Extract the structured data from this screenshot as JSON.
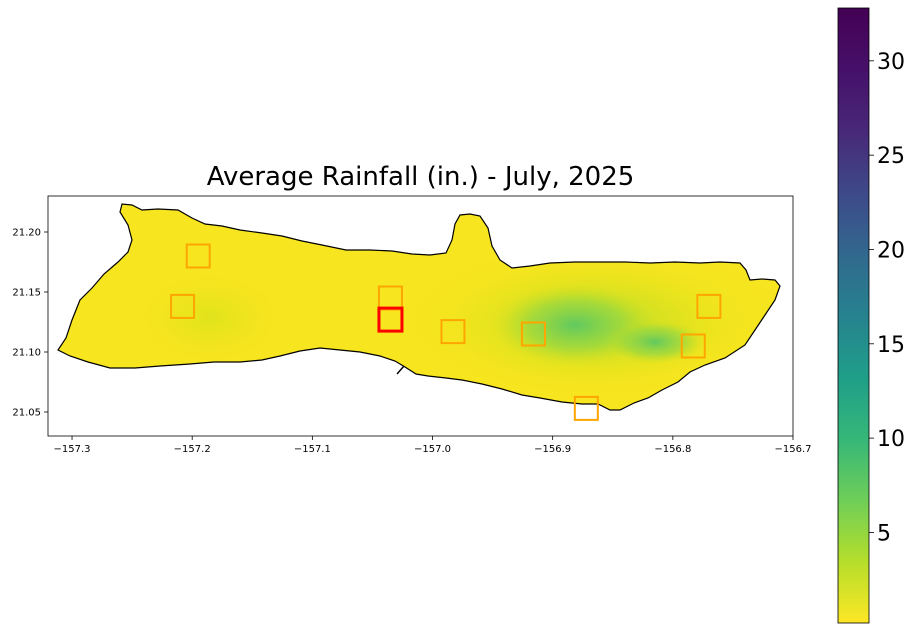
{
  "title": "Average Rainfall (in.) - July, 2025",
  "map": {
    "x_ticks": [
      "−157.3",
      "−157.2",
      "−157.1",
      "−157.0",
      "−156.9",
      "−156.8",
      "−156.7"
    ],
    "y_ticks": [
      "21.20",
      "21.15",
      "21.10",
      "21.05"
    ],
    "xlim": [
      -157.32,
      -156.7
    ],
    "ylim": [
      21.03,
      21.23
    ],
    "land_color_dry": "#f5e322",
    "land_color_wet": "#5cc862",
    "outline_color": "#000000"
  },
  "stations": [
    {
      "lon": -157.195,
      "lat": 21.18,
      "highlight": false
    },
    {
      "lon": -157.208,
      "lat": 21.138,
      "highlight": false
    },
    {
      "lon": -157.035,
      "lat": 21.145,
      "highlight": false
    },
    {
      "lon": -157.035,
      "lat": 21.127,
      "highlight": true
    },
    {
      "lon": -156.983,
      "lat": 21.117,
      "highlight": false
    },
    {
      "lon": -156.916,
      "lat": 21.115,
      "highlight": false
    },
    {
      "lon": -156.872,
      "lat": 21.053,
      "highlight": false
    },
    {
      "lon": -156.783,
      "lat": 21.105,
      "highlight": false
    },
    {
      "lon": -156.77,
      "lat": 21.138,
      "highlight": false
    }
  ],
  "station_color": "#ffa500",
  "highlight_color": "#ff0000",
  "colorbar": {
    "min": 0.2,
    "max": 32.8,
    "ticks": [
      "5",
      "10",
      "15",
      "20",
      "25",
      "30"
    ],
    "tick_values": [
      5,
      10,
      15,
      20,
      25,
      30
    ],
    "colormap": "viridis_r"
  }
}
